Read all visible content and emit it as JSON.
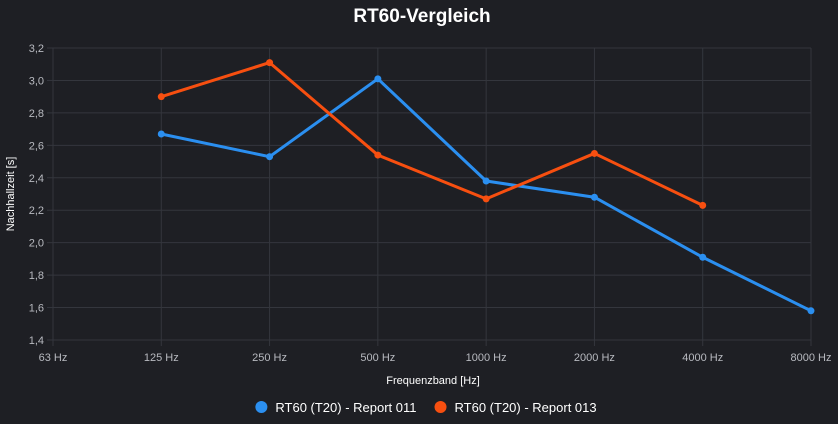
{
  "chart_data": {
    "type": "line",
    "title": "RT60-Vergleich",
    "xlabel": "Frequenzband [Hz]",
    "ylabel": "Nachhallzeit [s]",
    "categories": [
      "63 Hz",
      "125 Hz",
      "250 Hz",
      "500 Hz",
      "1000 Hz",
      "2000 Hz",
      "4000 Hz",
      "8000 Hz"
    ],
    "ylim": [
      1.4,
      3.2
    ],
    "yticks": [
      "3,2",
      "3,0",
      "2,8",
      "2,6",
      "2,4",
      "2,2",
      "2,0",
      "1,8",
      "1,6",
      "1,4"
    ],
    "ytick_values": [
      3.2,
      3.0,
      2.8,
      2.6,
      2.4,
      2.2,
      2.0,
      1.8,
      1.6,
      1.4
    ],
    "grid": true,
    "legend_position": "bottom",
    "series": [
      {
        "name": "RT60 (T20) - Report 011",
        "color": "#2b8ff0",
        "values": [
          null,
          2.67,
          2.53,
          3.01,
          2.38,
          2.28,
          1.91,
          1.58
        ]
      },
      {
        "name": "RT60 (T20) - Report 013",
        "color": "#f74f10",
        "values": [
          null,
          2.9,
          3.11,
          2.54,
          2.27,
          2.55,
          2.23,
          null
        ]
      }
    ]
  }
}
